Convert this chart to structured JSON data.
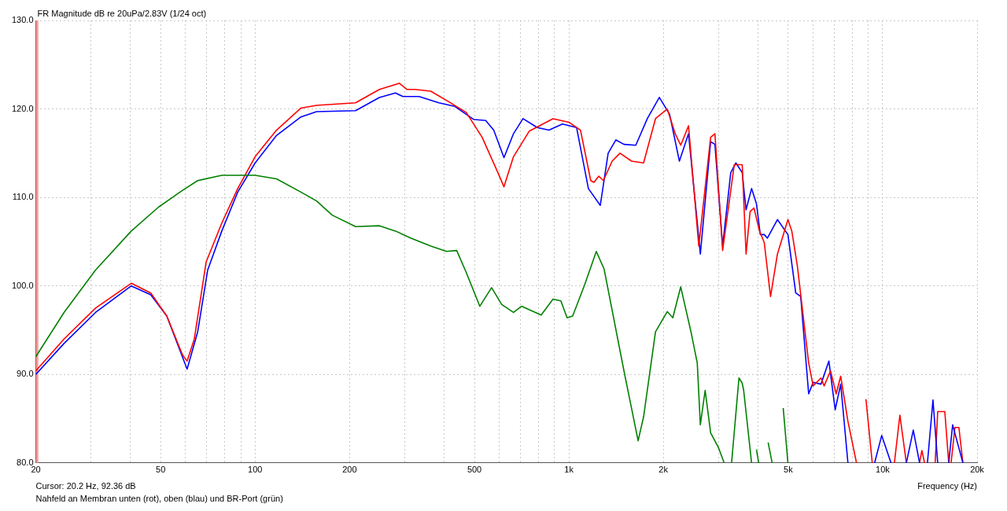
{
  "chart_data": {
    "type": "line",
    "title": "FR Magnitude dB re 20uPa/2.83V (1/24 oct)",
    "xlabel": "Frequency (Hz)",
    "annotations": [
      "Cursor: 20.2 Hz, 92.36 dB",
      "Nahfeld an Membran unten (rot), oben (blau) und BR-Port (grün)"
    ],
    "log": "x",
    "grid": true,
    "legend": false,
    "marker": "none",
    "line_style": "solid",
    "xlim": [
      20,
      20000
    ],
    "xticks": [
      20,
      {
        "value": 30,
        "label": null
      },
      {
        "value": 40,
        "label": null
      },
      50,
      {
        "value": 60,
        "label": null
      },
      {
        "value": 70,
        "label": null
      },
      {
        "value": 80,
        "label": null
      },
      {
        "value": 90,
        "label": null
      },
      100,
      200,
      {
        "value": 300,
        "label": null
      },
      {
        "value": 400,
        "label": null
      },
      500,
      {
        "value": 600,
        "label": null
      },
      {
        "value": 700,
        "label": null
      },
      {
        "value": 800,
        "label": null
      },
      {
        "value": 900,
        "label": null
      },
      {
        "value": 1000,
        "label": "1k"
      },
      {
        "value": 2000,
        "label": "2k"
      },
      {
        "value": 3000,
        "label": null
      },
      {
        "value": 4000,
        "label": null
      },
      {
        "value": 5000,
        "label": "5k"
      },
      {
        "value": 6000,
        "label": null
      },
      {
        "value": 7000,
        "label": null
      },
      {
        "value": 8000,
        "label": null
      },
      {
        "value": 9000,
        "label": null
      },
      {
        "value": 10000,
        "label": "10k"
      },
      {
        "value": 20000,
        "label": "20k"
      }
    ],
    "ylim": [
      80,
      130
    ],
    "yticks": [
      {
        "value": 80,
        "label": "80.0"
      },
      {
        "value": 90,
        "label": "90.0"
      },
      {
        "value": 100,
        "label": "100.0"
      },
      {
        "value": 110,
        "label": "110.0"
      },
      {
        "value": 120,
        "label": "120.0"
      },
      {
        "value": 130,
        "label": "130.0"
      }
    ],
    "ref_lines": [
      {
        "axis": "x",
        "value": 20.2,
        "color": "#ff9999",
        "line_style": "solid"
      }
    ],
    "series": [
      {
        "color": "#008000",
        "x": [
          20,
          24.6,
          31,
          40.3,
          49.2,
          58.7,
          65.6,
          78.3,
          100,
          117,
          140,
          157,
          176,
          209,
          249,
          280,
          314,
          363,
          407,
          439,
          471,
          520,
          567,
          611,
          666,
          706,
          816,
          890,
          943,
          987,
          1028,
          1122,
          1223,
          1295,
          1498,
          1662,
          1730,
          1888,
          2058,
          2144,
          2272,
          2450,
          2565,
          2624,
          2718,
          2830,
          3000,
          3124,
          3289,
          3300,
          3484,
          3568,
          3606,
          3822,
          3890,
          3960,
          4028,
          4194,
          4316,
          4444,
          4654,
          4820,
          4990
        ],
        "values": [
          92,
          97,
          101.8,
          106.2,
          108.9,
          110.8,
          111.9,
          112.5,
          112.5,
          112.1,
          110.6,
          109.6,
          108,
          106.7,
          106.8,
          106.2,
          105.4,
          104.5,
          103.9,
          104,
          101.5,
          97.7,
          99.8,
          97.9,
          97,
          97.7,
          96.7,
          98.5,
          98.3,
          96.4,
          96.6,
          100.1,
          103.9,
          101.9,
          90.4,
          82.5,
          85.2,
          94.8,
          97.1,
          96.4,
          99.9,
          94.8,
          91.3,
          84.3,
          88.2,
          83.4,
          81.7,
          80,
          null,
          80,
          89.6,
          89,
          88.2,
          80,
          null,
          81.5,
          80,
          null,
          82.3,
          80,
          null,
          86.2,
          80
        ]
      },
      {
        "color": "#ff0000",
        "x": [
          20,
          24.6,
          31,
          40.3,
          46.5,
          52.3,
          58.7,
          60.7,
          64,
          69.8,
          78.3,
          88,
          100,
          117,
          140,
          157,
          209,
          249,
          288,
          305,
          323,
          363,
          419,
          471,
          529,
          594,
          621,
          666,
          748,
          890,
          1000,
          1089,
          1174,
          1202,
          1245,
          1288,
          1373,
          1455,
          1585,
          1730,
          1888,
          2058,
          2182,
          2272,
          2406,
          2594,
          2830,
          2920,
          3090,
          3366,
          3568,
          3670,
          3780,
          3890,
          4050,
          4194,
          4392,
          4620,
          4990,
          5134,
          5346,
          5810,
          6004,
          6360,
          6510,
          6820,
          7110,
          7350,
          7750,
          8254,
          null,
          8846,
          9266
        ],
        "values": [
          90.4,
          94,
          97.5,
          100.3,
          99.2,
          96.6,
          92.2,
          91.5,
          94,
          102.7,
          107.1,
          111,
          114.6,
          117.6,
          120.1,
          120.4,
          120.7,
          122.2,
          122.9,
          122.2,
          122.2,
          122,
          120.7,
          119.6,
          116.8,
          112.8,
          111.2,
          114.6,
          117.5,
          118.9,
          118.5,
          117.6,
          111.9,
          111.7,
          112.4,
          111.9,
          114.1,
          115,
          114.1,
          113.9,
          118.9,
          120,
          117.2,
          115.9,
          118.1,
          104.5,
          116.8,
          117.2,
          104,
          113.7,
          113.7,
          103.6,
          108.4,
          108.8,
          106.2,
          104.9,
          98.8,
          103.6,
          107.5,
          106.2,
          102.3,
          91.3,
          88.7,
          89.6,
          88.7,
          90.4,
          87.8,
          89.8,
          84.7,
          80,
          null,
          87.2,
          80
        ]
      },
      {
        "color": "#0000ff",
        "x": [
          20,
          24.6,
          31,
          40.3,
          46.5,
          52.3,
          60.7,
          65.6,
          70.6,
          78.3,
          88,
          100,
          117,
          140,
          157,
          209,
          249,
          280,
          296,
          333,
          385,
          432,
          498,
          543,
          576,
          621,
          666,
          714,
          793,
          864,
          954,
          1058,
          1154,
          1259,
          1334,
          1412,
          1498,
          1634,
          1778,
          1942,
          2094,
          2250,
          2406,
          2624,
          2830,
          2920,
          3090,
          3280,
          3406,
          3568,
          3670,
          3822,
          3960,
          4074,
          4194,
          4292,
          4620,
          4990,
          5284,
          5480,
          5810,
          6004,
          6360,
          6740,
          7058,
          7350,
          7750
        ],
        "values": [
          90,
          93.5,
          97,
          100,
          99,
          96.6,
          90.6,
          94.8,
          101.8,
          106.2,
          110.6,
          113.9,
          117,
          119.1,
          119.7,
          119.8,
          121.3,
          121.8,
          121.4,
          121.4,
          120.7,
          120.3,
          118.8,
          118.7,
          117.6,
          114.5,
          117.2,
          118.9,
          117.9,
          117.6,
          118.3,
          117.9,
          111,
          109.1,
          115,
          116.5,
          116,
          115.9,
          118.9,
          121.3,
          119.4,
          114.1,
          117.2,
          103.6,
          116.3,
          116,
          104.5,
          112.8,
          113.9,
          112.8,
          108.6,
          111,
          109.3,
          105.8,
          105.8,
          105.4,
          107.5,
          105.8,
          99.2,
          98.8,
          87.8,
          89.1,
          88.9,
          91.5,
          86,
          88.9,
          80
        ]
      },
      {
        "color": "#0000ff",
        "x": [
          9428,
          9932,
          10630,
          null,
          11900,
          12520,
          13112,
          null,
          13892,
          14468,
          14978,
          null,
          16240,
          16712,
          18020
        ],
        "values": [
          80,
          83.1,
          80,
          null,
          80,
          83.7,
          80,
          null,
          80,
          87.1,
          80,
          null,
          80,
          84.3,
          80
        ]
      },
      {
        "color": "#ff0000",
        "x": [
          10900,
          11348,
          11900,
          null,
          13100,
          13336,
          13600,
          null,
          14700,
          14978,
          15778,
          16240,
          null,
          16520,
          17000,
          17500,
          18020
        ],
        "values": [
          80,
          85.4,
          80,
          null,
          80,
          81.4,
          80,
          null,
          80,
          85.8,
          85.8,
          80,
          null,
          80,
          84,
          84,
          80
        ]
      }
    ]
  }
}
